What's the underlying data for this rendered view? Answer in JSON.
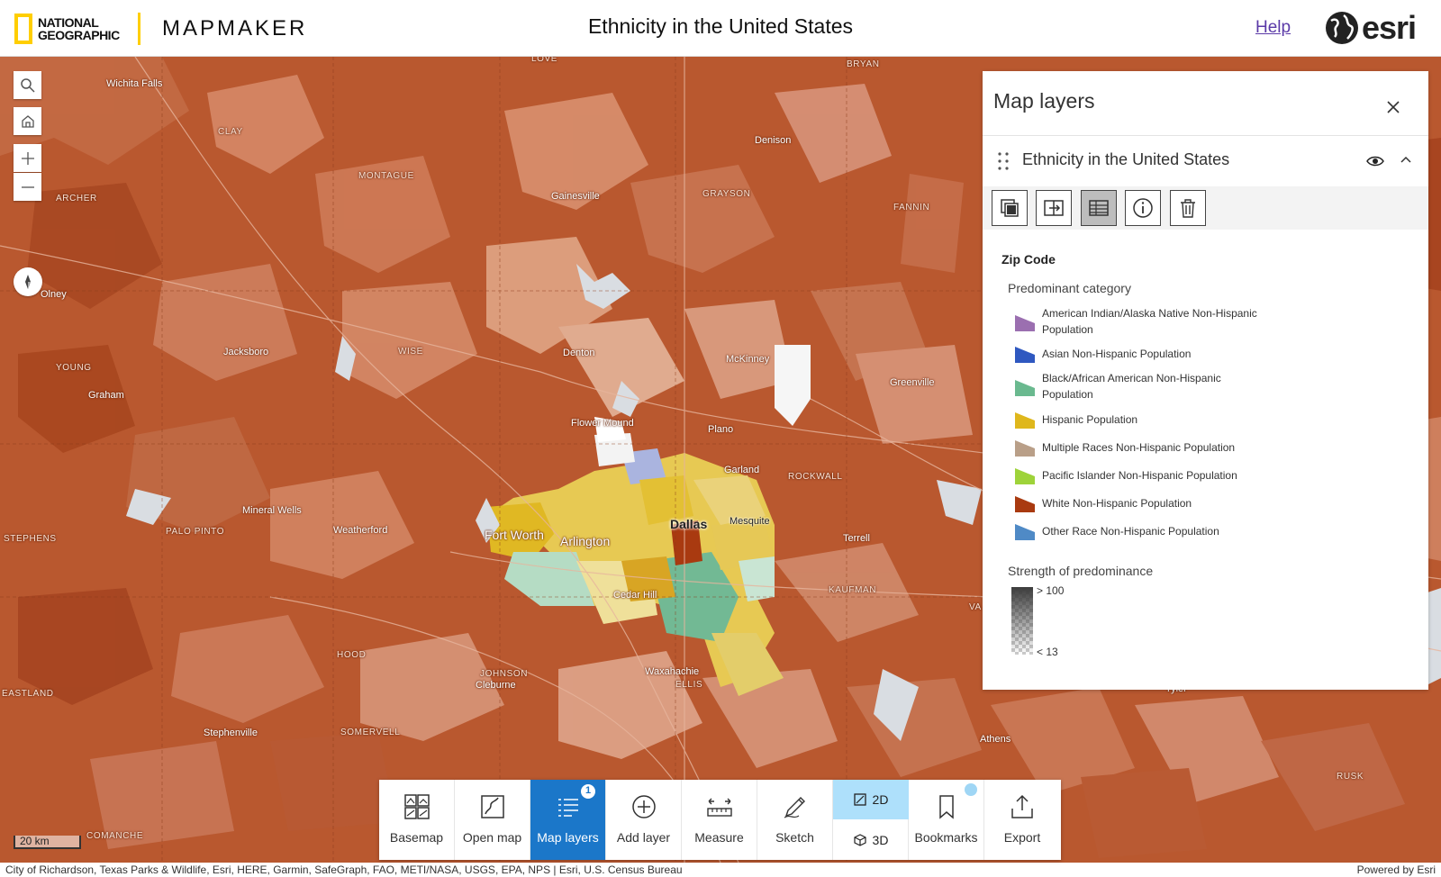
{
  "header": {
    "brand_line1": "NATIONAL",
    "brand_line2": "GEOGRAPHIC",
    "product": "MAPMAKER",
    "title": "Ethnicity in the United States",
    "help": "Help",
    "esri": "esri"
  },
  "map": {
    "places": {
      "wichita_falls": "Wichita Falls",
      "clay": "CLAY",
      "montague": "MONTAGUE",
      "archer": "ARCHER",
      "gainesville": "Gainesville",
      "denison": "Denison",
      "grayson": "GRAYSON",
      "fannin": "FANNIN",
      "bryan": "BRYAN",
      "love": "LOVE",
      "olney": "Olney",
      "jacksboro": "Jacksboro",
      "wise": "WISE",
      "denton": "Denton",
      "mckinney": "McKinney",
      "greenville": "Greenville",
      "young": "YOUNG",
      "graham": "Graham",
      "flower_mound": "Flower Mound",
      "plano": "Plano",
      "garland": "Garland",
      "rockwall": "ROCKWALL",
      "mineral_wells": "Mineral Wells",
      "palo_pinto": "PALO PINTO",
      "weatherford": "Weatherford",
      "fort_worth": "Fort Worth",
      "arlington": "Arlington",
      "dallas": "Dallas",
      "mesquite": "Mesquite",
      "terrell": "Terrell",
      "stephens": "STEPHENS",
      "kaufman": "KAUFMAN",
      "cedar_hill": "Cedar Hill",
      "hood": "HOOD",
      "johnson": "JOHNSON",
      "cleburne": "Cleburne",
      "waxahachie": "Waxahachie",
      "ellis": "ELLIS",
      "eastland": "EASTLAND",
      "stephenville": "Stephenville",
      "somervell": "SOMERVELL",
      "athens": "Athens",
      "comanche": "COMANCHE",
      "rusk": "RUSK",
      "tyler": "Tyler",
      "va": "VA"
    },
    "scale": "20 km",
    "attribution": "City of Richardson, Texas Parks & Wildlife, Esri, HERE, Garmin, SafeGraph, FAO, METI/NASA, USGS, EPA, NPS | Esri, U.S. Census Bureau",
    "powered_by": "Powered by Esri"
  },
  "controls": {
    "icons": [
      "search-icon",
      "home-icon",
      "zoom-in-icon",
      "zoom-out-icon",
      "compass-icon"
    ]
  },
  "panel": {
    "title": "Map layers",
    "layer_title": "Ethnicity in the United States",
    "legend_heading": "Zip Code",
    "legend_subheading": "Predominant category",
    "categories": [
      {
        "label": "American Indian/Alaska Native Non-Hispanic Population",
        "color": "#9b6fb0"
      },
      {
        "label": "Asian Non-Hispanic Population",
        "color": "#2f58c0"
      },
      {
        "label": "Black/African American Non-Hispanic Population",
        "color": "#6ab98f"
      },
      {
        "label": "Hispanic Population",
        "color": "#dfb71c"
      },
      {
        "label": "Multiple Races Non-Hispanic Population",
        "color": "#b99f88"
      },
      {
        "label": "Pacific Islander Non-Hispanic Population",
        "color": "#9ed33a"
      },
      {
        "label": "White Non-Hispanic Population",
        "color": "#a93a10"
      },
      {
        "label": "Other Race Non-Hispanic Population",
        "color": "#4f8ac6"
      }
    ],
    "strength_label": "Strength of predominance",
    "strength_high": "> 100",
    "strength_low": "< 13"
  },
  "toolbar": {
    "basemap": "Basemap",
    "open_map": "Open map",
    "map_layers": "Map layers",
    "map_layers_badge": "1",
    "add_layer": "Add layer",
    "measure": "Measure",
    "sketch": "Sketch",
    "view_2d": "2D",
    "view_3d": "3D",
    "bookmarks": "Bookmarks",
    "export": "Export"
  },
  "colors": {
    "white_region": "#b9582f",
    "accent_blue": "#1b77c9",
    "natgeo_yellow": "#ffce00"
  }
}
